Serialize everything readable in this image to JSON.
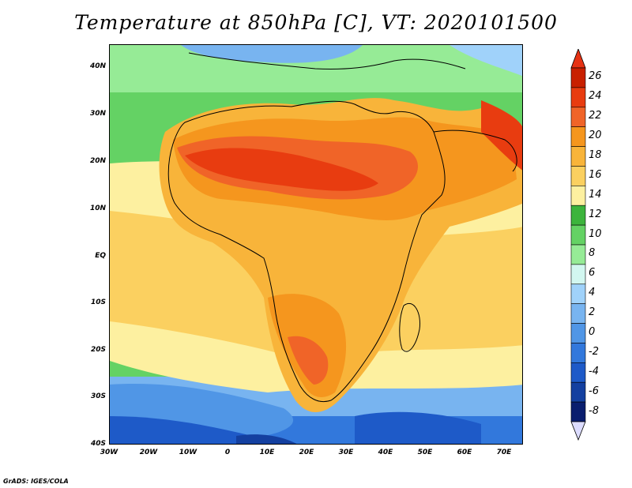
{
  "title": "Temperature at 850hPa [C], VT: 2020101500",
  "credit": "GrADS: IGES/COLA",
  "map": {
    "lon_range": [
      -30,
      75
    ],
    "lat_range": [
      -40,
      45
    ],
    "lat_ticks": [
      "40N",
      "30N",
      "20N",
      "10N",
      "EQ",
      "10S",
      "20S",
      "30S",
      "40S"
    ],
    "lon_ticks": [
      "30W",
      "20W",
      "10W",
      "0",
      "10E",
      "20E",
      "30E",
      "40E",
      "50E",
      "60E",
      "70E"
    ]
  },
  "colorbar": {
    "labels": [
      "26",
      "24",
      "22",
      "20",
      "18",
      "16",
      "14",
      "12",
      "10",
      "8",
      "6",
      "4",
      "2",
      "0",
      "-2",
      "-4",
      "-6",
      "-8"
    ],
    "colors": [
      "#c82000",
      "#e83c10",
      "#f06428",
      "#f5961e",
      "#f8b43a",
      "#fbd060",
      "#fdf0a0",
      "#3cb43c",
      "#64d264",
      "#96eb96",
      "#d2f7f0",
      "#a0d2fa",
      "#78b4f0",
      "#5096e6",
      "#3278dc",
      "#1e5ac8",
      "#1440a0",
      "#0a1e6e"
    ],
    "top_color": "#e63214",
    "bottom_color": "#dcdcff"
  }
}
